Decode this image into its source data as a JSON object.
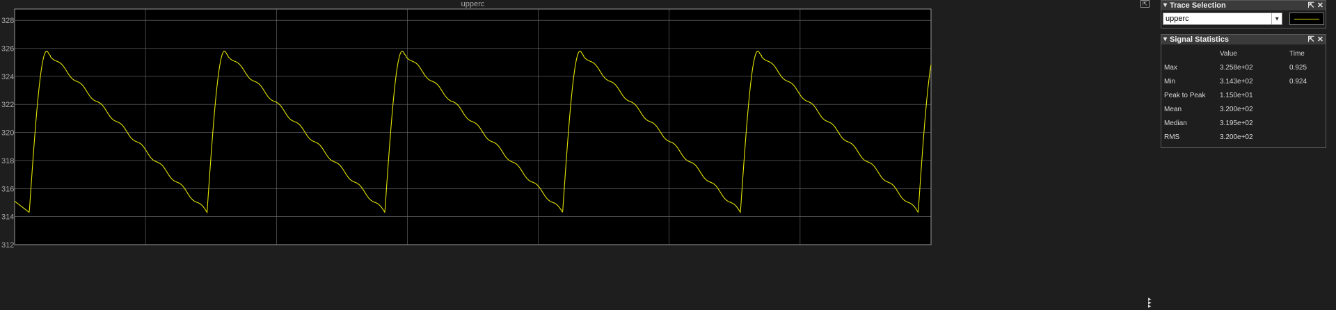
{
  "scope": {
    "plot_title": "upperc",
    "background": "#000000",
    "grid_color": "#707070",
    "trace_color": "#e6e600"
  },
  "chart_data": {
    "type": "line",
    "title": "upperc",
    "xlabel": "",
    "ylabel": "",
    "ylim": [
      312,
      328.8
    ],
    "yticks": [
      312,
      314,
      316,
      318,
      320,
      322,
      324,
      326,
      328
    ],
    "x_range": [
      0,
      1
    ],
    "grid": true,
    "series": [
      {
        "name": "upperc",
        "color": "#e6e600",
        "waveform": "sawtooth",
        "period": 0.194,
        "first_peak_x": 0.035,
        "peak": 325.8,
        "trough": 314.3,
        "trough_lead": 0.019,
        "step_count": 8,
        "start_value": 315.1
      }
    ]
  },
  "trace_selection": {
    "title": "Trace Selection",
    "selected": "upperc",
    "line_color": "#e6e600"
  },
  "signal_statistics": {
    "title": "Signal Statistics",
    "headers": [
      "",
      "Value",
      "Time"
    ],
    "rows": [
      {
        "label": "Max",
        "value": "3.258e+02",
        "time": "0.925"
      },
      {
        "label": "Min",
        "value": "3.143e+02",
        "time": "0.924"
      },
      {
        "label": "Peak to Peak",
        "value": "1.150e+01",
        "time": ""
      },
      {
        "label": "Mean",
        "value": "3.200e+02",
        "time": ""
      },
      {
        "label": "Median",
        "value": "3.195e+02",
        "time": ""
      },
      {
        "label": "RMS",
        "value": "3.200e+02",
        "time": ""
      }
    ]
  },
  "icons": {
    "panel_caret": "▾",
    "pin": "⇲",
    "close": "✕",
    "undock": "⇱",
    "dropdown": "▾",
    "grip": "▸"
  }
}
